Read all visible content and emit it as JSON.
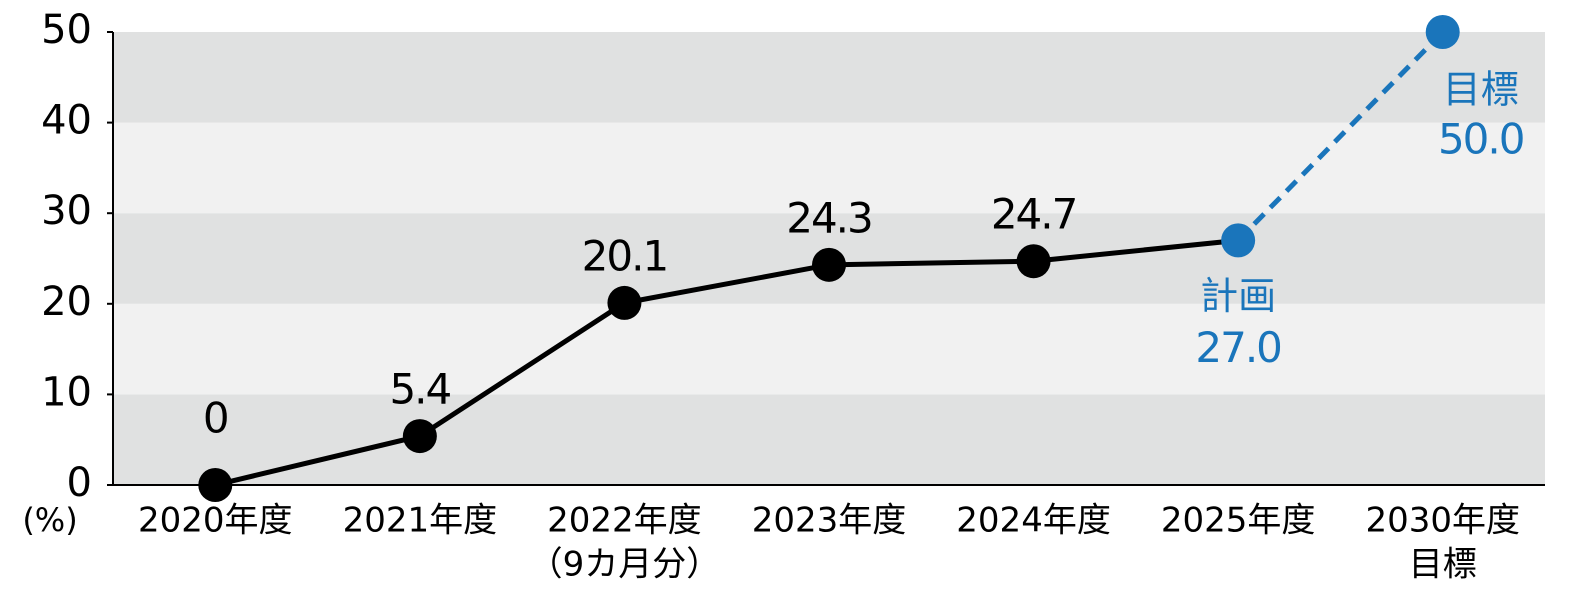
{
  "chart_data": {
    "type": "line",
    "categories": [
      "2020年度",
      "2021年度",
      "2022年度",
      "2023年度",
      "2024年度",
      "2025年度",
      "2030年度"
    ],
    "category_notes": [
      null,
      null,
      "（9カ月分）",
      null,
      null,
      null,
      "目標"
    ],
    "values": [
      0,
      5.4,
      20.1,
      24.3,
      24.7,
      27.0,
      50.0
    ],
    "value_labels": [
      "0",
      "5.4",
      "20.1",
      "24.3",
      "24.7",
      "27.0",
      "50.0"
    ],
    "annotations": [
      null,
      null,
      null,
      null,
      null,
      "計画",
      "目標"
    ],
    "color": "#000000",
    "plan_color": "#1a75bb",
    "plan_start": 5,
    "ylim": [
      0,
      50
    ],
    "yticks": [
      0,
      10,
      20,
      30,
      40,
      50
    ],
    "y_unit": "(%)",
    "band_colors": [
      "#e0e1e1",
      "#f1f1f1"
    ]
  }
}
